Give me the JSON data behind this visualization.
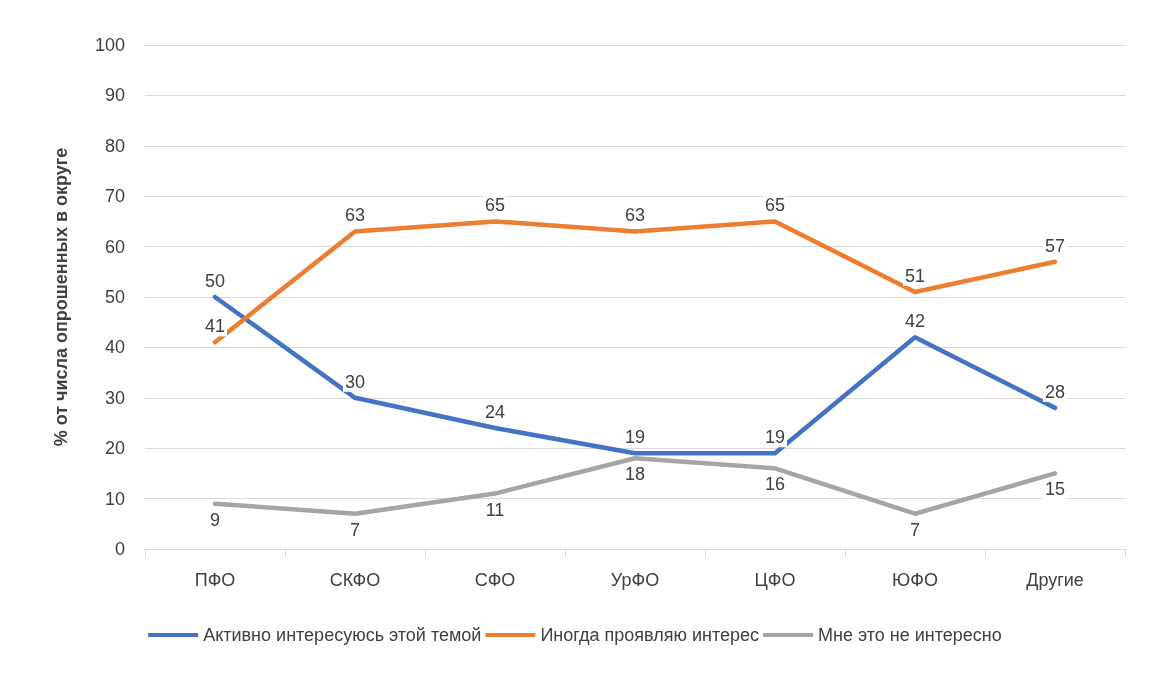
{
  "chart_data": {
    "type": "line",
    "ylabel": "% от числа опрошенных в округе",
    "categories": [
      "ПФО",
      "СКФО",
      "СФО",
      "УрФО",
      "ЦФО",
      "ЮФО",
      "Другие"
    ],
    "series": [
      {
        "name": "Активно интересуюсь этой темой",
        "color": "#4472c4",
        "values": [
          50,
          30,
          24,
          19,
          19,
          42,
          28
        ]
      },
      {
        "name": "Иногда проявляю интерес",
        "color": "#ed7d31",
        "values": [
          41,
          63,
          65,
          63,
          65,
          51,
          57
        ]
      },
      {
        "name": "Мне это не интересно",
        "color": "#a5a5a5",
        "values": [
          9,
          7,
          11,
          18,
          16,
          7,
          15
        ]
      }
    ],
    "ylim": [
      0,
      100
    ],
    "yticks": [
      0,
      10,
      20,
      30,
      40,
      50,
      60,
      70,
      80,
      90,
      100
    ],
    "grid": "y",
    "legend": "bottom",
    "marker": "none",
    "line_style": "solid",
    "data_labels": true
  }
}
